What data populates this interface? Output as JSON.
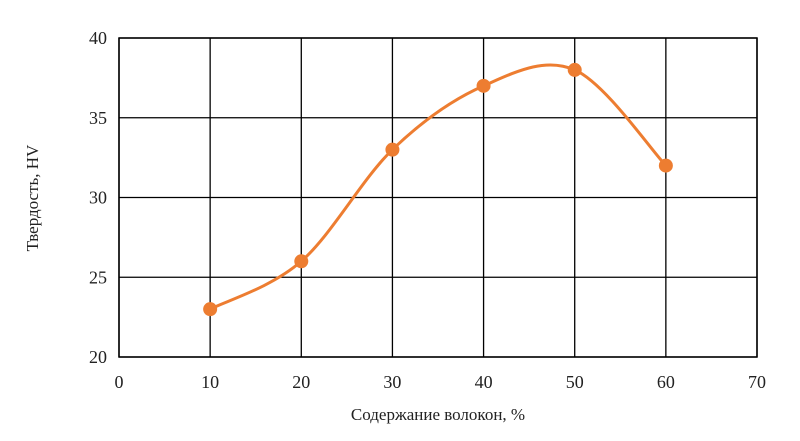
{
  "chart_data": {
    "type": "line",
    "smooth": true,
    "grid": true,
    "xlabel": "Содержание волокон, %",
    "ylabel": "Твердость, HV",
    "xlim": [
      0,
      70
    ],
    "ylim": [
      20,
      40
    ],
    "xticks": [
      "0",
      "10",
      "20",
      "30",
      "40",
      "50",
      "60",
      "70"
    ],
    "yticks": [
      "20",
      "25",
      "30",
      "35",
      "40"
    ],
    "series": [
      {
        "color": "#ed7d31",
        "x": [
          10,
          20,
          30,
          40,
          50,
          60
        ],
        "y": [
          23,
          26,
          33,
          37,
          38,
          32
        ]
      }
    ]
  }
}
